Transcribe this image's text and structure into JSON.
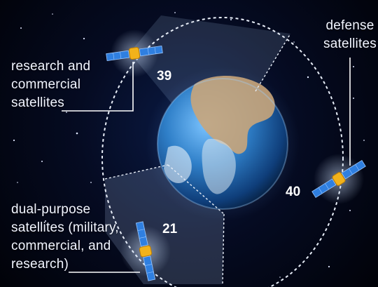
{
  "labels": {
    "research": "research and\ncommercial\nsatellites",
    "defense": "defense\nsatellites",
    "dual": "dual-purpose\nsatellites (military,\ncommercial, and\nresearch)"
  },
  "counts": {
    "research": "39",
    "defense": "40",
    "dual": "21"
  },
  "colors": {
    "background": "#050b22",
    "ocean": "#1f6fb3",
    "land": "#c9a57a",
    "orbit": "#e8eef8",
    "panel": "#2f7fe0",
    "satellite_body": "#f2b21b"
  },
  "icons": {
    "satellite": "satellite-icon",
    "earth": "earth-globe"
  }
}
